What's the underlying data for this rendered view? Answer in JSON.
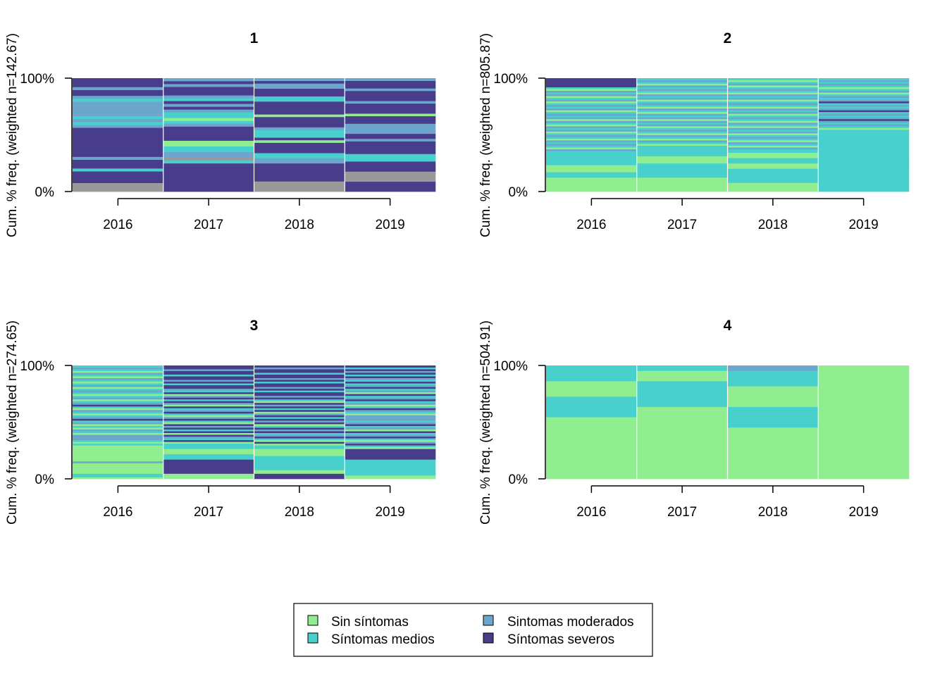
{
  "chart_data": [
    {
      "type": "bar",
      "title": "1",
      "ylabel": "Cum. % freq. (weighted n=142.67)",
      "categories": [
        "2016",
        "2017",
        "2018",
        "2019"
      ],
      "yticks": [
        "0%",
        "100%"
      ],
      "ylim": [
        0,
        100
      ],
      "stacks": [
        [
          "M",
          "M",
          "M",
          "S",
          "S",
          "S",
          "S",
          "Me",
          "S",
          "S",
          "S",
          "Mo",
          "S",
          "S",
          "S",
          "S",
          "S",
          "S",
          "S",
          "S",
          "S",
          "S",
          "Mo",
          "Me",
          "Mo",
          "Me",
          "Mo",
          "Mo",
          "Mo",
          "Mo",
          "Mo",
          "Me",
          "Mo",
          "S",
          "S",
          "Mo",
          "S",
          "S",
          "S"
        ],
        [
          "S",
          "S",
          "S",
          "S",
          "S",
          "S",
          "S",
          "S",
          "S",
          "S",
          "Me",
          "M",
          "Mo",
          "Mo",
          "Me",
          "Me",
          "Sin",
          "Sin",
          "S",
          "S",
          "S",
          "S",
          "S",
          "Mo",
          "Me",
          "Sin",
          "Me",
          "Me",
          "Mo",
          "S",
          "Mo",
          "S",
          "Me",
          "Mo",
          "S",
          "S",
          "S",
          "Mo",
          "S",
          "Mo"
        ],
        [
          "M",
          "M",
          "M",
          "M",
          "S",
          "S",
          "S",
          "S",
          "S",
          "S",
          "S",
          "Mo",
          "Mo",
          "Me",
          "Me",
          "S",
          "S",
          "S",
          "S",
          "Sin",
          "S",
          "Me",
          "Me",
          "Me",
          "Mo",
          "S",
          "S",
          "S",
          "S",
          "Sin",
          "S",
          "S",
          "S",
          "S",
          "S",
          "Me",
          "Me",
          "S",
          "S",
          "S",
          "Mo",
          "Mo",
          "S",
          "Mo"
        ],
        [
          "S",
          "S",
          "S",
          "S",
          "M",
          "M",
          "M",
          "M",
          "S",
          "S",
          "S",
          "S",
          "Me",
          "Me",
          "Me",
          "S",
          "S",
          "S",
          "S",
          "S",
          "Mo",
          "S",
          "S",
          "Mo",
          "Mo",
          "Mo",
          "Mo",
          "S",
          "S",
          "S",
          "Sin",
          "S",
          "S",
          "S",
          "S",
          "Mo",
          "S",
          "S",
          "S",
          "S",
          "Mo",
          "S",
          "S",
          "S",
          "Mo"
        ]
      ]
    },
    {
      "type": "bar",
      "title": "2",
      "ylabel": "Cum. % freq. (weighted n=805.87)",
      "categories": [
        "2016",
        "2017",
        "2018",
        "2019"
      ],
      "yticks": [
        "0%",
        "100%"
      ],
      "ylim": [
        0,
        100
      ],
      "stacks": [
        [
          "Sin",
          "Sin",
          "Sin",
          "Sin",
          "Sin",
          "Sin",
          "Sin",
          "Sin",
          "Me",
          "Me",
          "Me",
          "Sin",
          "Sin",
          "Sin",
          "Sin",
          "Me",
          "Me",
          "Me",
          "Me",
          "Me",
          "Me",
          "Me",
          "Me",
          "Mo",
          "Sin",
          "Me",
          "Mo",
          "Me",
          "Mo",
          "Sin",
          "Me",
          "Mo",
          "Me",
          "Sin",
          "Mo",
          "Me",
          "Mo",
          "Sin",
          "Me",
          "Mo",
          "Sin",
          "Mo",
          "Me",
          "Mo",
          "Me",
          "Sin",
          "Mo",
          "Me",
          "Mo",
          "Me",
          "Sin",
          "Mo",
          "Me",
          "Sin",
          "Mo",
          "Me",
          "Mo",
          "Sin",
          "Me",
          "S",
          "S",
          "S",
          "S",
          "S"
        ],
        [
          "Sin",
          "Sin",
          "Sin",
          "Sin",
          "Sin",
          "Sin",
          "Sin",
          "Sin",
          "Me",
          "Me",
          "Me",
          "Me",
          "Me",
          "Me",
          "Me",
          "Me",
          "Sin",
          "Sin",
          "Sin",
          "Sin",
          "Me",
          "Me",
          "Me",
          "Me",
          "Me",
          "Me",
          "Sin",
          "Me",
          "Mo",
          "Sin",
          "Me",
          "Mo",
          "Sin",
          "Me",
          "Mo",
          "Me",
          "Sin",
          "Mo",
          "Me",
          "Mo",
          "Sin",
          "Mo",
          "Me",
          "Mo",
          "Sin",
          "Me",
          "Mo",
          "Sin",
          "Me",
          "Mo",
          "Me",
          "Sin",
          "Mo",
          "Me",
          "Mo",
          "Sin",
          "Me",
          "Mo",
          "Me",
          "Mo",
          "Sin",
          "Me",
          "Mo",
          "Me"
        ],
        [
          "Sin",
          "Sin",
          "Sin",
          "Sin",
          "Sin",
          "Me",
          "Me",
          "Me",
          "Me",
          "Me",
          "Me",
          "Me",
          "Me",
          "Sin",
          "Sin",
          "Sin",
          "Me",
          "Me",
          "Me",
          "Sin",
          "Sin",
          "Sin",
          "Me",
          "Me",
          "Mo",
          "Sin",
          "Me",
          "Mo",
          "Sin",
          "Me",
          "Mo",
          "Me",
          "Sin",
          "Mo",
          "Me",
          "Mo",
          "Sin",
          "Me",
          "Mo",
          "Sin",
          "Me",
          "Mo",
          "Me",
          "Sin",
          "Mo",
          "Me",
          "Mo",
          "Sin",
          "Me",
          "Mo",
          "Me",
          "Sin",
          "Mo",
          "Me",
          "Mo",
          "Sin",
          "Me",
          "Mo",
          "Me",
          "Sin",
          "Mo",
          "Me",
          "Sin",
          "Me"
        ],
        [
          "Me",
          "Me",
          "Me",
          "Me",
          "Me",
          "Me",
          "Me",
          "Me",
          "Me",
          "Me",
          "Me",
          "Me",
          "Me",
          "Me",
          "Me",
          "Me",
          "Me",
          "Me",
          "Me",
          "Me",
          "Me",
          "Me",
          "Me",
          "Me",
          "Me",
          "Me",
          "Me",
          "Me",
          "Me",
          "Me",
          "Me",
          "Me",
          "Me",
          "Me",
          "Me",
          "Sin",
          "Me",
          "Mo",
          "Me",
          "Mo",
          "S",
          "Mo",
          "Me",
          "Mo",
          "Me",
          "S",
          "Mo",
          "Me",
          "Mo",
          "Me",
          "S",
          "Mo",
          "Me",
          "Mo",
          "Me",
          "Sin",
          "Mo",
          "Me",
          "Sin",
          "Me",
          "Mo",
          "Me",
          "Mo",
          "Me"
        ]
      ]
    },
    {
      "type": "bar",
      "title": "3",
      "ylabel": "Cum. % freq. (weighted n=274.65)",
      "categories": [
        "2016",
        "2017",
        "2018",
        "2019"
      ],
      "yticks": [
        "0%",
        "100%"
      ],
      "ylim": [
        0,
        100
      ],
      "stacks": [
        [
          "Sin",
          "Me",
          "Me",
          "Sin",
          "Sin",
          "Sin",
          "Sin",
          "Sin",
          "Sin",
          "Mo",
          "Sin",
          "Sin",
          "Sin",
          "Sin",
          "Sin",
          "Sin",
          "Sin",
          "Sin",
          "Sin",
          "Me",
          "Sin",
          "Me",
          "Mo",
          "Mo",
          "Mo",
          "Sin",
          "Me",
          "Mo",
          "Sin",
          "Me",
          "Sin",
          "Mo",
          "Me",
          "S",
          "Mo",
          "Me",
          "Sin",
          "Me",
          "Mo",
          "Sin",
          "Me",
          "S",
          "Mo",
          "Me",
          "Sin",
          "Mo",
          "Me",
          "Sin",
          "Me",
          "Mo",
          "Me",
          "Sin",
          "Mo",
          "Me",
          "Sin",
          "Me",
          "Mo",
          "Sin",
          "Me",
          "Mo",
          "Sin",
          "Me",
          "Mo",
          "Me"
        ],
        [
          "Sin",
          "Sin",
          "Sin",
          "S",
          "S",
          "S",
          "S",
          "S",
          "S",
          "S",
          "S",
          "Me",
          "Me",
          "Me",
          "Sin",
          "Sin",
          "Sin",
          "Me",
          "Me",
          "Me",
          "Sin",
          "S",
          "Me",
          "Mo",
          "S",
          "Sin",
          "S",
          "Me",
          "S",
          "Mo",
          "S",
          "Sin",
          "Me",
          "S",
          "Mo",
          "Sin",
          "Me",
          "S",
          "Mo",
          "Me",
          "S",
          "Sin",
          "Mo",
          "S",
          "Me",
          "S",
          "Mo",
          "Sin",
          "S",
          "Me",
          "Mo",
          "S",
          "S",
          "Me",
          "S",
          "Mo",
          "S",
          "S",
          "Me",
          "S",
          "S",
          "Mo",
          "S",
          "S"
        ],
        [
          "S",
          "S",
          "S",
          "Sin",
          "Sin",
          "Me",
          "Me",
          "Me",
          "Me",
          "Me",
          "Me",
          "Me",
          "Me",
          "Sin",
          "Sin",
          "Sin",
          "Sin",
          "Me",
          "Me",
          "Sin",
          "S",
          "Sin",
          "Me",
          "S",
          "Mo",
          "Me",
          "S",
          "Mo",
          "S",
          "Me",
          "Sin",
          "S",
          "Mo",
          "S",
          "Me",
          "S",
          "Mo",
          "Sin",
          "S",
          "Me",
          "S",
          "Mo",
          "S",
          "Sin",
          "Me",
          "S",
          "Mo",
          "S",
          "S",
          "Me",
          "S",
          "Mo",
          "S",
          "S",
          "Me",
          "S",
          "Mo",
          "S",
          "S",
          "Me",
          "S",
          "S",
          "Mo",
          "S"
        ],
        [
          "Sin",
          "Sin",
          "Me",
          "Me",
          "Me",
          "Me",
          "Me",
          "Me",
          "Me",
          "Me",
          "Me",
          "S",
          "S",
          "S",
          "S",
          "S",
          "S",
          "Sin",
          "Me",
          "S",
          "Mo",
          "Sin",
          "Me",
          "S",
          "Mo",
          "Me",
          "S",
          "Sin",
          "Mo",
          "Me",
          "S",
          "Mo",
          "Me",
          "Mo",
          "Mo",
          "Mo",
          "Sin",
          "Me",
          "Mo",
          "S",
          "Me",
          "Sin",
          "Mo",
          "Me",
          "S",
          "Mo",
          "Me",
          "S",
          "Sin",
          "Mo",
          "Me",
          "S",
          "Mo",
          "Me",
          "S",
          "Me",
          "Mo",
          "S",
          "Me",
          "S",
          "Mo",
          "S",
          "Me",
          "S"
        ]
      ]
    },
    {
      "type": "bar",
      "title": "4",
      "ylabel": "Cum. % freq. (weighted n=504.91)",
      "categories": [
        "2016",
        "2017",
        "2018",
        "2019"
      ],
      "yticks": [
        "0%",
        "100%"
      ],
      "ylim": [
        0,
        100
      ],
      "stacks": [
        [
          "Sin",
          "Sin",
          "Sin",
          "Sin",
          "Sin",
          "Sin",
          "Sin",
          "Sin",
          "Sin",
          "Sin",
          "Sin",
          "Sin",
          "Me",
          "Me",
          "Me",
          "Me",
          "Sin",
          "Sin",
          "Sin",
          "Me",
          "Me",
          "Me"
        ],
        [
          "Sin",
          "Sin",
          "Sin",
          "Sin",
          "Sin",
          "Sin",
          "Sin",
          "Sin",
          "Sin",
          "Sin",
          "Sin",
          "Sin",
          "Sin",
          "Sin",
          "Me",
          "Me",
          "Me",
          "Me",
          "Me",
          "Sin",
          "Sin",
          "Me"
        ],
        [
          "Sin",
          "Sin",
          "Sin",
          "Sin",
          "Sin",
          "Sin",
          "Sin",
          "Sin",
          "Sin",
          "Sin",
          "Me",
          "Me",
          "Me",
          "Me",
          "Sin",
          "Sin",
          "Sin",
          "Sin",
          "Me",
          "Me",
          "Me",
          "Mo"
        ],
        [
          "Sin",
          "Sin",
          "Sin",
          "Sin",
          "Sin",
          "Sin",
          "Sin",
          "Sin",
          "Sin",
          "Sin",
          "Sin",
          "Sin",
          "Sin",
          "Sin",
          "Sin",
          "Sin",
          "Sin",
          "Sin",
          "Sin",
          "Sin",
          "Sin",
          "Sin"
        ]
      ]
    }
  ],
  "legend": {
    "items": [
      {
        "key": "Sin",
        "label": "Sin síntomas",
        "color": "#90EE90"
      },
      {
        "key": "Me",
        "label": "Síntomas medios",
        "color": "#48D1CC"
      },
      {
        "key": "Mo",
        "label": "Sintomas moderados",
        "color": "#6CA6CD"
      },
      {
        "key": "S",
        "label": "Síntomas severos",
        "color": "#483D8B"
      }
    ]
  }
}
